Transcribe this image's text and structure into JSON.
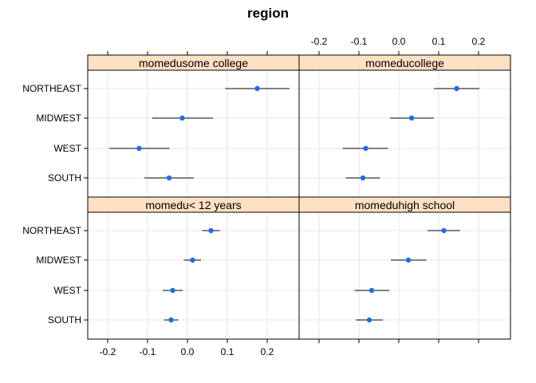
{
  "chart_data": {
    "type": "scatter",
    "title": "region",
    "categories": [
      "NORTHEAST",
      "MIDWEST",
      "WEST",
      "SOUTH"
    ],
    "xlim": [
      -0.25,
      0.28
    ],
    "xticks": [
      -0.2,
      -0.1,
      0.0,
      0.1,
      0.2
    ],
    "xtick_labels": [
      "-0.2",
      "-0.1",
      "0.0",
      "0.1",
      "0.2"
    ],
    "grid": true,
    "colors": {
      "point": "#1b6ee8",
      "strip": "#ffe0c2",
      "grid": "#e6e6e6",
      "interval": "#000000"
    },
    "panels": [
      {
        "name": "momedusome college",
        "estimates": [
          0.175,
          -0.013,
          -0.121,
          -0.046
        ],
        "lower": [
          0.095,
          -0.088,
          -0.196,
          -0.108
        ],
        "upper": [
          0.256,
          0.064,
          -0.045,
          0.016
        ]
      },
      {
        "name": "momeducollege",
        "estimates": [
          0.145,
          0.032,
          -0.083,
          -0.09
        ],
        "lower": [
          0.088,
          -0.022,
          -0.141,
          -0.133
        ],
        "upper": [
          0.202,
          0.088,
          -0.027,
          -0.047
        ]
      },
      {
        "name": "momedu< 12 years",
        "estimates": [
          0.059,
          0.013,
          -0.037,
          -0.041
        ],
        "lower": [
          0.037,
          -0.009,
          -0.062,
          -0.059
        ],
        "upper": [
          0.081,
          0.034,
          -0.012,
          -0.023
        ]
      },
      {
        "name": "momeduhigh school",
        "estimates": [
          0.113,
          0.024,
          -0.068,
          -0.074
        ],
        "lower": [
          0.072,
          -0.02,
          -0.111,
          -0.108
        ],
        "upper": [
          0.154,
          0.069,
          -0.024,
          -0.04
        ]
      }
    ]
  }
}
